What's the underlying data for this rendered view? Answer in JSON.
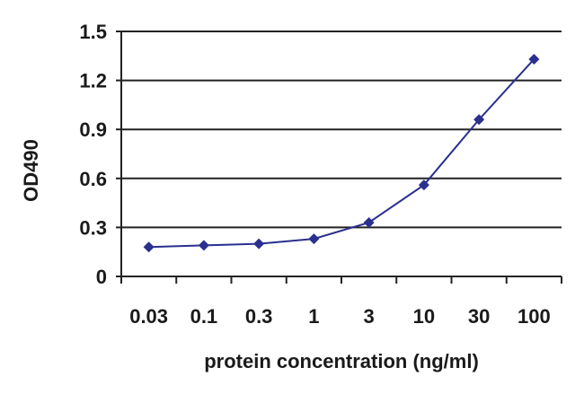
{
  "chart_data": {
    "type": "line",
    "title": "",
    "xlabel": "protein concentration (ng/ml)",
    "ylabel": "OD490",
    "categories": [
      "0.03",
      "0.1",
      "0.3",
      "1",
      "3",
      "10",
      "30",
      "100"
    ],
    "series": [
      {
        "name": "OD490",
        "values": [
          0.18,
          0.19,
          0.2,
          0.23,
          0.33,
          0.56,
          0.96,
          1.33
        ],
        "color": "#2b2f8f"
      }
    ],
    "ylim": [
      0,
      1.5
    ],
    "yticks": [
      0,
      0.3,
      0.6,
      0.9,
      1.2,
      1.5
    ],
    "ytick_labels": [
      "0",
      "0.3",
      "0.6",
      "0.9",
      "1.2",
      "1.5"
    ],
    "grid": true,
    "legend": "none"
  },
  "colors": {
    "series": "#2b2f8f",
    "grid": "#222222",
    "axis": "#222222",
    "text": "#1a1a1a"
  }
}
